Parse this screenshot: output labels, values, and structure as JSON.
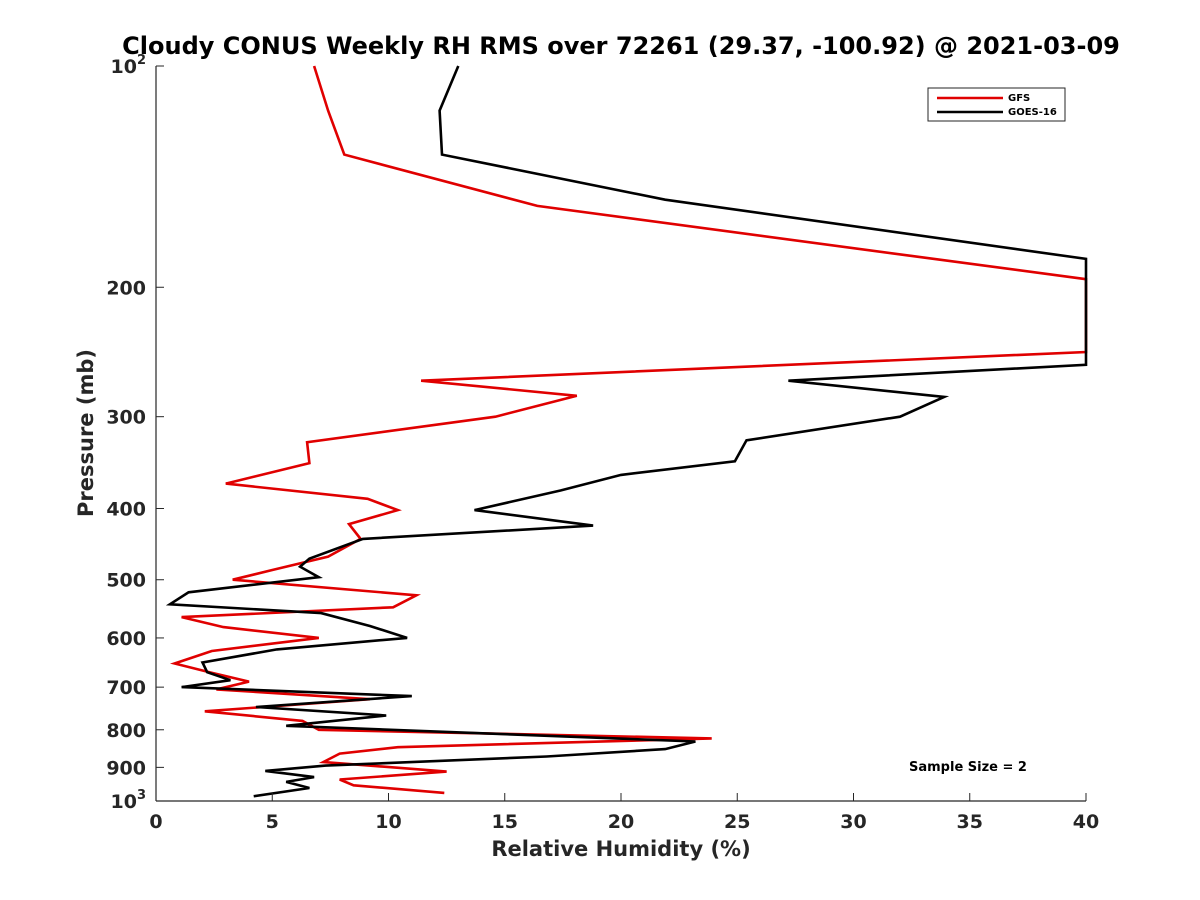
{
  "chart_data": {
    "type": "line",
    "title": "Cloudy CONUS Weekly RH RMS over 72261 (29.37, -100.92) @ 2021-03-09",
    "xlabel": "Relative Humidity (%)",
    "ylabel": "Pressure (mb)",
    "xlim": [
      0,
      40
    ],
    "ylim": [
      100,
      1000
    ],
    "y_scale": "log",
    "y_reversed": true,
    "grid": false,
    "legend_position": "top-right",
    "x_ticks": [
      {
        "value": 0,
        "label": "0"
      },
      {
        "value": 5,
        "label": "5"
      },
      {
        "value": 10,
        "label": "10"
      },
      {
        "value": 15,
        "label": "15"
      },
      {
        "value": 20,
        "label": "20"
      },
      {
        "value": 25,
        "label": "25"
      },
      {
        "value": 30,
        "label": "30"
      },
      {
        "value": 35,
        "label": "35"
      },
      {
        "value": 40,
        "label": "40"
      }
    ],
    "y_ticks": [
      {
        "value": 100,
        "base": "10",
        "exp": "2"
      },
      {
        "value": 200,
        "label": "200"
      },
      {
        "value": 300,
        "label": "300"
      },
      {
        "value": 400,
        "label": "400"
      },
      {
        "value": 500,
        "label": "500"
      },
      {
        "value": 600,
        "label": "600"
      },
      {
        "value": 700,
        "label": "700"
      },
      {
        "value": 800,
        "label": "800"
      },
      {
        "value": 900,
        "label": "900"
      },
      {
        "value": 1000,
        "base": "10",
        "exp": "3"
      }
    ],
    "series": [
      {
        "name": "GFS",
        "color": "#e00000",
        "points": [
          [
            6.8,
            100
          ],
          [
            7.4,
            115
          ],
          [
            8.1,
            132
          ],
          [
            16.4,
            155
          ],
          [
            40,
            195
          ],
          [
            40,
            245
          ],
          [
            11.4,
            268
          ],
          [
            18.1,
            281
          ],
          [
            14.6,
            300
          ],
          [
            6.5,
            325
          ],
          [
            6.6,
            347
          ],
          [
            3.0,
            370
          ],
          [
            9.1,
            388
          ],
          [
            10.4,
            402
          ],
          [
            8.3,
            420
          ],
          [
            8.8,
            440
          ],
          [
            7.4,
            465
          ],
          [
            5.0,
            485
          ],
          [
            3.3,
            500
          ],
          [
            11.2,
            525
          ],
          [
            10.2,
            545
          ],
          [
            1.1,
            562
          ],
          [
            2.9,
            580
          ],
          [
            7.0,
            600
          ],
          [
            2.4,
            625
          ],
          [
            0.8,
            650
          ],
          [
            2.3,
            668
          ],
          [
            4.0,
            688
          ],
          [
            2.6,
            705
          ],
          [
            9.2,
            727
          ],
          [
            2.1,
            755
          ],
          [
            6.3,
            778
          ],
          [
            7.0,
            800
          ],
          [
            23.9,
            822
          ],
          [
            10.4,
            845
          ],
          [
            7.9,
            862
          ],
          [
            7.2,
            885
          ],
          [
            12.5,
            912
          ],
          [
            7.9,
            935
          ],
          [
            8.5,
            952
          ],
          [
            12.4,
            975
          ]
        ]
      },
      {
        "name": "GOES-16",
        "color": "#000000",
        "points": [
          [
            13.0,
            100
          ],
          [
            12.2,
            115
          ],
          [
            12.3,
            132
          ],
          [
            21.9,
            152
          ],
          [
            40,
            183
          ],
          [
            40,
            255
          ],
          [
            27.2,
            268
          ],
          [
            33.9,
            282
          ],
          [
            32.0,
            300
          ],
          [
            25.4,
            323
          ],
          [
            24.9,
            345
          ],
          [
            20.0,
            360
          ],
          [
            17.4,
            378
          ],
          [
            13.7,
            402
          ],
          [
            18.8,
            422
          ],
          [
            8.9,
            440
          ],
          [
            6.6,
            468
          ],
          [
            6.2,
            480
          ],
          [
            7.0,
            496
          ],
          [
            1.4,
            520
          ],
          [
            0.6,
            540
          ],
          [
            7.1,
            555
          ],
          [
            9.2,
            578
          ],
          [
            10.8,
            600
          ],
          [
            5.2,
            622
          ],
          [
            2.0,
            648
          ],
          [
            2.2,
            668
          ],
          [
            3.2,
            685
          ],
          [
            1.1,
            700
          ],
          [
            11.0,
            720
          ],
          [
            4.3,
            745
          ],
          [
            9.9,
            765
          ],
          [
            5.6,
            790
          ],
          [
            23.2,
            830
          ],
          [
            21.9,
            850
          ],
          [
            16.8,
            870
          ],
          [
            7.3,
            895
          ],
          [
            4.7,
            910
          ],
          [
            6.8,
            928
          ],
          [
            5.6,
            942
          ],
          [
            6.6,
            960
          ],
          [
            4.2,
            985
          ]
        ]
      }
    ],
    "annotation": "Sample Size = 2"
  }
}
